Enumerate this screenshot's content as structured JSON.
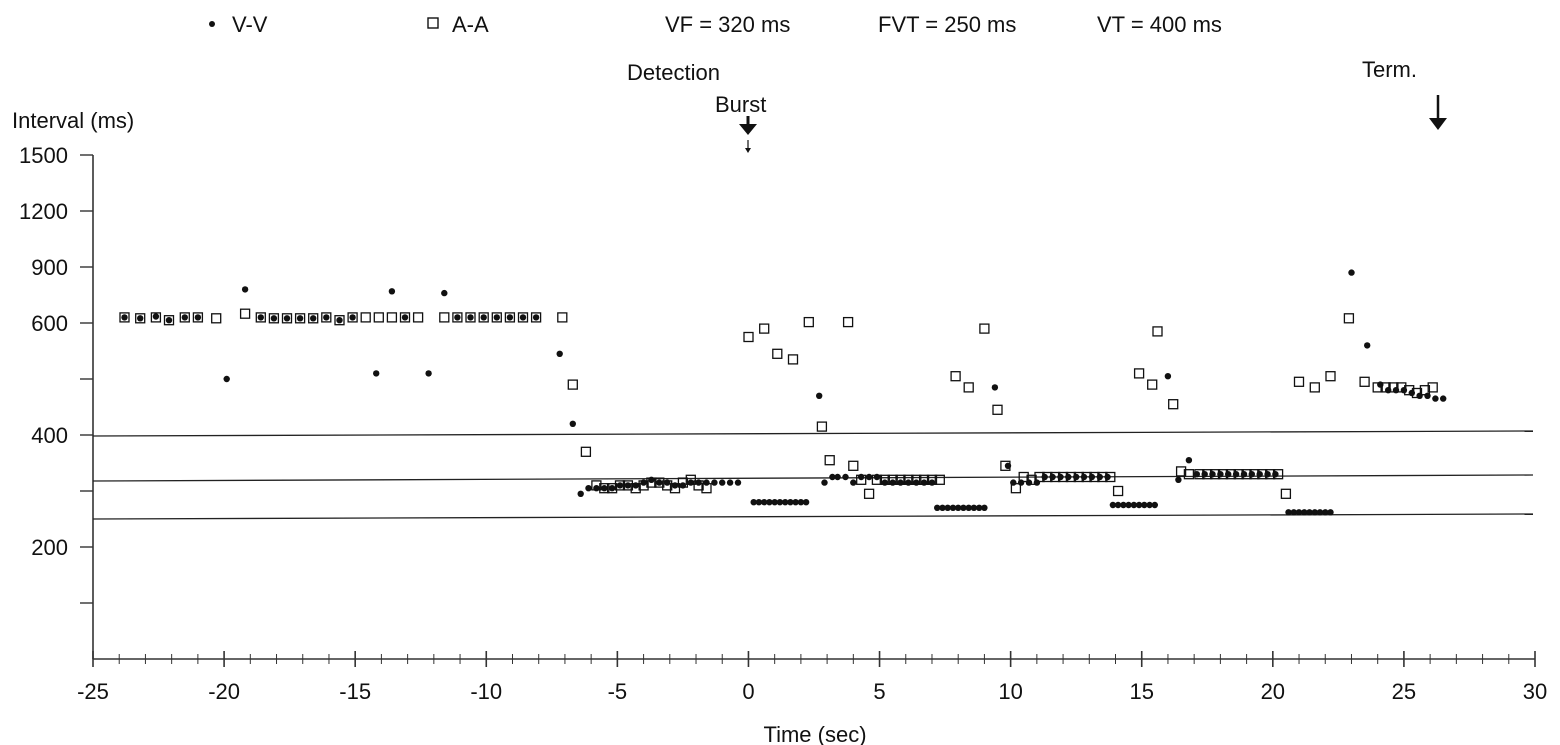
{
  "chart_data": {
    "type": "scatter",
    "ylabel": "Interval (ms)",
    "xlabel": "Time (sec)",
    "xlim": [
      -25,
      30
    ],
    "ylim_labeled": [
      200,
      400,
      600,
      900,
      1200,
      1500
    ],
    "x_ticks": [
      -25,
      -20,
      -15,
      -10,
      -5,
      0,
      5,
      10,
      15,
      20,
      25,
      30
    ],
    "y_tick_labels": [
      "200",
      "400",
      "600",
      "900",
      "1200",
      "1500"
    ],
    "legend": [
      {
        "symbol": "•",
        "label": "V-V"
      },
      {
        "symbol": "□",
        "label": "A-A"
      }
    ],
    "zone_labels": [
      "VF = 320 ms",
      "FVT = 250 ms",
      "VT = 400 ms"
    ],
    "thresholds_ms": [
      400,
      320,
      250
    ],
    "annotations": [
      {
        "label": "Detection",
        "x": 0
      },
      {
        "label": "Burst",
        "x": 0
      },
      {
        "label": "Term.",
        "x": 26.5
      }
    ],
    "series": [
      {
        "name": "V-V",
        "marker": "dot",
        "points": [
          [
            -23.8,
            630
          ],
          [
            -23.2,
            625
          ],
          [
            -22.6,
            635
          ],
          [
            -22.1,
            615
          ],
          [
            -21.5,
            630
          ],
          [
            -21.0,
            630
          ],
          [
            -19.9,
            500
          ],
          [
            -19.2,
            780
          ],
          [
            -18.6,
            630
          ],
          [
            -18.1,
            625
          ],
          [
            -17.6,
            625
          ],
          [
            -17.1,
            625
          ],
          [
            -16.6,
            625
          ],
          [
            -16.1,
            630
          ],
          [
            -15.6,
            615
          ],
          [
            -15.1,
            630
          ],
          [
            -14.2,
            510
          ],
          [
            -13.6,
            770
          ],
          [
            -13.1,
            630
          ],
          [
            -12.2,
            510
          ],
          [
            -11.6,
            760
          ],
          [
            -11.1,
            630
          ],
          [
            -10.6,
            630
          ],
          [
            -10.1,
            630
          ],
          [
            -9.6,
            630
          ],
          [
            -9.1,
            630
          ],
          [
            -8.6,
            630
          ],
          [
            -8.1,
            630
          ],
          [
            -7.2,
            545
          ],
          [
            -6.7,
            420
          ],
          [
            -6.4,
            295
          ],
          [
            -6.1,
            305
          ],
          [
            -5.8,
            305
          ],
          [
            -5.5,
            305
          ],
          [
            -5.2,
            305
          ],
          [
            -4.9,
            310
          ],
          [
            -4.6,
            310
          ],
          [
            -4.3,
            310
          ],
          [
            -4.0,
            315
          ],
          [
            -3.7,
            320
          ],
          [
            -3.4,
            315
          ],
          [
            -3.1,
            315
          ],
          [
            -2.8,
            310
          ],
          [
            -2.5,
            310
          ],
          [
            -2.2,
            315
          ],
          [
            -1.9,
            315
          ],
          [
            -1.6,
            315
          ],
          [
            -1.3,
            315
          ],
          [
            -1.0,
            315
          ],
          [
            -0.7,
            315
          ],
          [
            -0.4,
            315
          ],
          [
            0.2,
            280
          ],
          [
            0.4,
            280
          ],
          [
            0.6,
            280
          ],
          [
            0.8,
            280
          ],
          [
            1.0,
            280
          ],
          [
            1.2,
            280
          ],
          [
            1.4,
            280
          ],
          [
            1.6,
            280
          ],
          [
            1.8,
            280
          ],
          [
            2.0,
            280
          ],
          [
            2.2,
            280
          ],
          [
            2.7,
            470
          ],
          [
            2.9,
            315
          ],
          [
            3.2,
            325
          ],
          [
            3.4,
            325
          ],
          [
            3.7,
            325
          ],
          [
            4.0,
            315
          ],
          [
            4.3,
            325
          ],
          [
            4.6,
            325
          ],
          [
            4.9,
            325
          ],
          [
            5.2,
            315
          ],
          [
            5.5,
            315
          ],
          [
            5.8,
            315
          ],
          [
            6.1,
            315
          ],
          [
            6.4,
            315
          ],
          [
            6.7,
            315
          ],
          [
            7.0,
            315
          ],
          [
            7.2,
            270
          ],
          [
            7.4,
            270
          ],
          [
            7.6,
            270
          ],
          [
            7.8,
            270
          ],
          [
            8.0,
            270
          ],
          [
            8.2,
            270
          ],
          [
            8.4,
            270
          ],
          [
            8.6,
            270
          ],
          [
            8.8,
            270
          ],
          [
            9.0,
            270
          ],
          [
            9.4,
            485
          ],
          [
            9.9,
            345
          ],
          [
            10.1,
            315
          ],
          [
            10.4,
            315
          ],
          [
            10.7,
            315
          ],
          [
            11.0,
            315
          ],
          [
            11.3,
            325
          ],
          [
            11.6,
            325
          ],
          [
            11.9,
            325
          ],
          [
            12.2,
            325
          ],
          [
            12.5,
            325
          ],
          [
            12.8,
            325
          ],
          [
            13.1,
            325
          ],
          [
            13.4,
            325
          ],
          [
            13.7,
            325
          ],
          [
            13.9,
            275
          ],
          [
            14.1,
            275
          ],
          [
            14.3,
            275
          ],
          [
            14.5,
            275
          ],
          [
            14.7,
            275
          ],
          [
            14.9,
            275
          ],
          [
            15.1,
            275
          ],
          [
            15.3,
            275
          ],
          [
            15.5,
            275
          ],
          [
            16.0,
            505
          ],
          [
            16.4,
            320
          ],
          [
            16.8,
            355
          ],
          [
            17.1,
            330
          ],
          [
            17.4,
            330
          ],
          [
            17.7,
            330
          ],
          [
            18.0,
            330
          ],
          [
            18.3,
            330
          ],
          [
            18.6,
            330
          ],
          [
            18.9,
            330
          ],
          [
            19.2,
            330
          ],
          [
            19.5,
            330
          ],
          [
            19.8,
            330
          ],
          [
            20.1,
            330
          ],
          [
            20.6,
            262
          ],
          [
            20.8,
            262
          ],
          [
            21.0,
            262
          ],
          [
            21.2,
            262
          ],
          [
            21.4,
            262
          ],
          [
            21.6,
            262
          ],
          [
            21.8,
            262
          ],
          [
            22.0,
            262
          ],
          [
            22.2,
            262
          ],
          [
            23.0,
            870
          ],
          [
            23.6,
            560
          ],
          [
            24.1,
            490
          ],
          [
            24.4,
            480
          ],
          [
            24.7,
            480
          ],
          [
            25.0,
            480
          ],
          [
            25.3,
            475
          ],
          [
            25.6,
            470
          ],
          [
            25.9,
            470
          ],
          [
            26.2,
            465
          ],
          [
            26.5,
            465
          ]
        ]
      },
      {
        "name": "A-A",
        "marker": "square",
        "points": [
          [
            -23.8,
            630
          ],
          [
            -23.2,
            625
          ],
          [
            -22.6,
            630
          ],
          [
            -22.1,
            615
          ],
          [
            -21.5,
            630
          ],
          [
            -21.0,
            630
          ],
          [
            -20.3,
            625
          ],
          [
            -19.2,
            650
          ],
          [
            -18.6,
            630
          ],
          [
            -18.1,
            625
          ],
          [
            -17.6,
            625
          ],
          [
            -17.1,
            625
          ],
          [
            -16.6,
            625
          ],
          [
            -16.1,
            630
          ],
          [
            -15.6,
            615
          ],
          [
            -15.1,
            630
          ],
          [
            -14.6,
            630
          ],
          [
            -14.1,
            630
          ],
          [
            -13.6,
            630
          ],
          [
            -13.1,
            630
          ],
          [
            -12.6,
            630
          ],
          [
            -11.6,
            630
          ],
          [
            -11.1,
            630
          ],
          [
            -10.6,
            630
          ],
          [
            -10.1,
            630
          ],
          [
            -9.6,
            630
          ],
          [
            -9.1,
            630
          ],
          [
            -8.6,
            630
          ],
          [
            -8.1,
            630
          ],
          [
            -7.1,
            630
          ],
          [
            -6.7,
            490
          ],
          [
            -6.2,
            370
          ],
          [
            -5.8,
            310
          ],
          [
            -5.5,
            305
          ],
          [
            -5.2,
            305
          ],
          [
            -4.9,
            310
          ],
          [
            -4.6,
            310
          ],
          [
            -4.3,
            305
          ],
          [
            -4.0,
            310
          ],
          [
            -3.7,
            315
          ],
          [
            -3.4,
            315
          ],
          [
            -3.1,
            310
          ],
          [
            -2.8,
            305
          ],
          [
            -2.5,
            315
          ],
          [
            -2.2,
            320
          ],
          [
            -1.9,
            310
          ],
          [
            -1.6,
            305
          ],
          [
            0.0,
            575
          ],
          [
            0.6,
            590
          ],
          [
            1.1,
            545
          ],
          [
            1.7,
            535
          ],
          [
            2.3,
            605
          ],
          [
            2.8,
            415
          ],
          [
            3.1,
            355
          ],
          [
            3.8,
            605
          ],
          [
            4.0,
            345
          ],
          [
            4.3,
            320
          ],
          [
            4.6,
            295
          ],
          [
            4.9,
            320
          ],
          [
            5.2,
            320
          ],
          [
            5.5,
            320
          ],
          [
            5.8,
            320
          ],
          [
            6.1,
            320
          ],
          [
            6.4,
            320
          ],
          [
            6.7,
            320
          ],
          [
            7.0,
            320
          ],
          [
            7.3,
            320
          ],
          [
            7.9,
            505
          ],
          [
            8.4,
            485
          ],
          [
            9.0,
            590
          ],
          [
            9.5,
            445
          ],
          [
            9.8,
            345
          ],
          [
            10.2,
            305
          ],
          [
            10.5,
            325
          ],
          [
            10.8,
            320
          ],
          [
            11.1,
            325
          ],
          [
            11.4,
            325
          ],
          [
            11.7,
            325
          ],
          [
            12.0,
            325
          ],
          [
            12.3,
            325
          ],
          [
            12.6,
            325
          ],
          [
            12.9,
            325
          ],
          [
            13.2,
            325
          ],
          [
            13.5,
            325
          ],
          [
            13.8,
            325
          ],
          [
            14.1,
            300
          ],
          [
            14.9,
            510
          ],
          [
            15.4,
            490
          ],
          [
            15.6,
            585
          ],
          [
            16.2,
            455
          ],
          [
            16.5,
            335
          ],
          [
            16.8,
            330
          ],
          [
            17.2,
            330
          ],
          [
            17.5,
            330
          ],
          [
            17.8,
            330
          ],
          [
            18.1,
            330
          ],
          [
            18.4,
            330
          ],
          [
            18.7,
            330
          ],
          [
            19.0,
            330
          ],
          [
            19.3,
            330
          ],
          [
            19.6,
            330
          ],
          [
            19.9,
            330
          ],
          [
            20.2,
            330
          ],
          [
            20.5,
            295
          ],
          [
            21.0,
            495
          ],
          [
            21.6,
            485
          ],
          [
            22.2,
            505
          ],
          [
            22.9,
            625
          ],
          [
            23.5,
            495
          ],
          [
            24.0,
            485
          ],
          [
            24.3,
            485
          ],
          [
            24.6,
            485
          ],
          [
            24.9,
            485
          ],
          [
            25.2,
            480
          ],
          [
            25.5,
            475
          ],
          [
            25.8,
            480
          ],
          [
            26.1,
            485
          ]
        ]
      }
    ]
  }
}
